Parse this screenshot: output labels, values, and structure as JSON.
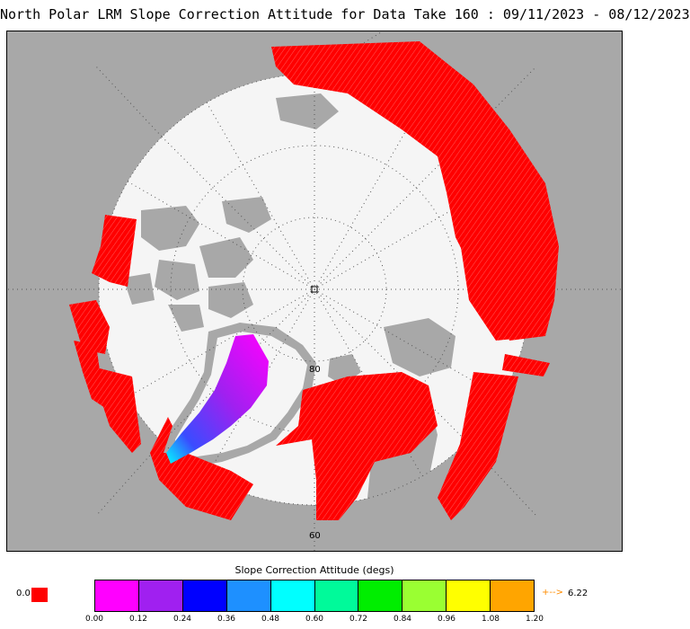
{
  "title": "North Polar LRM Slope Correction Attitude for Data Take 160 : 09/11/2023 - 08/12/2023",
  "map": {
    "projection": "north polar stereographic",
    "latitude_labels": [
      "80",
      "60"
    ],
    "colors": {
      "land": "#a8a8a8",
      "ocean": "#f5f5f5",
      "ice_sheet": "#f5f5f5",
      "graticule": "#555555",
      "track": "#ff0000"
    }
  },
  "legend": {
    "title": "Slope Correction Attitude (degs)",
    "min_label": "0.0",
    "min_color": "#ff0000",
    "max_arrow": "+-->",
    "max_label": "6.22",
    "ticks": [
      "0.00",
      "0.12",
      "0.24",
      "0.36",
      "0.48",
      "0.60",
      "0.72",
      "0.84",
      "0.96",
      "1.08",
      "1.20"
    ],
    "colors": [
      "#ff00ff",
      "#a020f0",
      "#0000ff",
      "#1e90ff",
      "#00ffff",
      "#00fa9a",
      "#00ee00",
      "#9aff32",
      "#ffff00",
      "#ffa500"
    ]
  }
}
